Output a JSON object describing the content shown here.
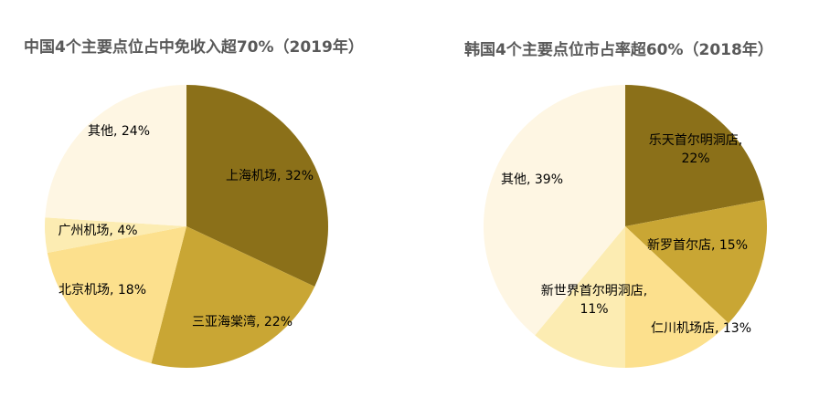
{
  "chart_data": [
    {
      "type": "pie",
      "title": "中国4个主要点位占中免收入超70%（2019年）",
      "slices": [
        {
          "label": "上海机场",
          "value": 32,
          "color": "#8B7019"
        },
        {
          "label": "三亚海棠湾",
          "value": 22,
          "color": "#C9A634"
        },
        {
          "label": "北京机场",
          "value": 18,
          "color": "#FCE08D"
        },
        {
          "label": "广州机场",
          "value": 4,
          "color": "#FCECB2"
        },
        {
          "label": "其他",
          "value": 24,
          "color": "#FEF6E3"
        }
      ]
    },
    {
      "type": "pie",
      "title": "韩国4个主要点位市占率超60%（2018年）",
      "slices": [
        {
          "label": "乐天首尔明洞店",
          "value": 22,
          "color": "#8B7019"
        },
        {
          "label": "新罗首尔店",
          "value": 15,
          "color": "#C9A634"
        },
        {
          "label": "仁川机场店",
          "value": 13,
          "color": "#FCE08D"
        },
        {
          "label": "新世界首尔明洞店",
          "value": 11,
          "color": "#FCECB2"
        },
        {
          "label": "其他",
          "value": 39,
          "color": "#FEF6E3"
        }
      ]
    }
  ]
}
